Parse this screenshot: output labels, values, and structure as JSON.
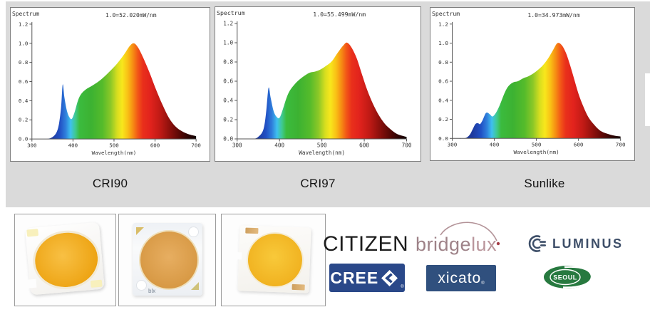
{
  "page": {
    "background": "#ffffff",
    "band_color": "#dadada",
    "spectrum_gradient": [
      [
        0.0,
        "#1c2b82"
      ],
      [
        0.12,
        "#1e3a9e"
      ],
      [
        0.17,
        "#2150c4"
      ],
      [
        0.205,
        "#2f7edb"
      ],
      [
        0.235,
        "#3fc0ef"
      ],
      [
        0.265,
        "#3fc98f"
      ],
      [
        0.29,
        "#3bbb3e"
      ],
      [
        0.36,
        "#3cb232"
      ],
      [
        0.43,
        "#55bb2b"
      ],
      [
        0.48,
        "#8cc827"
      ],
      [
        0.52,
        "#d8de1f"
      ],
      [
        0.55,
        "#f8e71c"
      ],
      [
        0.585,
        "#f9bf15"
      ],
      [
        0.615,
        "#f68d13"
      ],
      [
        0.645,
        "#f25617"
      ],
      [
        0.675,
        "#e9301b"
      ],
      [
        0.72,
        "#e2231d"
      ],
      [
        0.78,
        "#c01a15"
      ],
      [
        0.84,
        "#8c100c"
      ],
      [
        0.9,
        "#580805"
      ],
      [
        0.95,
        "#2d0302"
      ],
      [
        1.0,
        "#120101"
      ]
    ]
  },
  "chart_data": [
    {
      "type": "area",
      "caption": "CRI90",
      "corner_label": "Spectrum",
      "scale_label": "1.0=52.020mW/nm",
      "xlabel": "Wavelength(nm)",
      "xlim": [
        300,
        700
      ],
      "ylim": [
        0,
        1.2
      ],
      "x_ticks": [
        300,
        400,
        500,
        600,
        700
      ],
      "y_ticks": [
        "0.0",
        "0.2",
        "0.4",
        "0.6",
        "0.8",
        "1.0",
        "1.2"
      ],
      "series": [
        {
          "name": "CRI90 spectrum",
          "points": [
            [
              300,
              0
            ],
            [
              334,
              0
            ],
            [
              350,
              0.02
            ],
            [
              360,
              0.07
            ],
            [
              366,
              0.16
            ],
            [
              371,
              0.33
            ],
            [
              375,
              0.57
            ],
            [
              379,
              0.44
            ],
            [
              385,
              0.3
            ],
            [
              391,
              0.23
            ],
            [
              397,
              0.21
            ],
            [
              404,
              0.28
            ],
            [
              412,
              0.4
            ],
            [
              420,
              0.47
            ],
            [
              432,
              0.52
            ],
            [
              448,
              0.56
            ],
            [
              468,
              0.62
            ],
            [
              488,
              0.7
            ],
            [
              508,
              0.79
            ],
            [
              524,
              0.88
            ],
            [
              538,
              0.97
            ],
            [
              548,
              1.0
            ],
            [
              558,
              0.96
            ],
            [
              570,
              0.86
            ],
            [
              586,
              0.7
            ],
            [
              602,
              0.52
            ],
            [
              618,
              0.36
            ],
            [
              634,
              0.22
            ],
            [
              650,
              0.13
            ],
            [
              666,
              0.08
            ],
            [
              682,
              0.05
            ],
            [
              700,
              0.03
            ]
          ]
        }
      ]
    },
    {
      "type": "area",
      "caption": "CRI97",
      "corner_label": "Spectrum",
      "scale_label": "1.0=55.499mW/nm",
      "xlabel": "Wavelength(nm)",
      "xlim": [
        300,
        700
      ],
      "ylim": [
        0,
        1.2
      ],
      "x_ticks": [
        300,
        400,
        500,
        600,
        700
      ],
      "y_ticks": [
        "0.0",
        "0.2",
        "0.4",
        "0.6",
        "0.8",
        "1.0",
        "1.2"
      ],
      "series": [
        {
          "name": "CRI97 spectrum",
          "points": [
            [
              300,
              0
            ],
            [
              338,
              0
            ],
            [
              352,
              0.03
            ],
            [
              362,
              0.1
            ],
            [
              368,
              0.26
            ],
            [
              374,
              0.53
            ],
            [
              379,
              0.43
            ],
            [
              386,
              0.29
            ],
            [
              393,
              0.23
            ],
            [
              400,
              0.22
            ],
            [
              408,
              0.31
            ],
            [
              416,
              0.42
            ],
            [
              424,
              0.5
            ],
            [
              436,
              0.57
            ],
            [
              448,
              0.62
            ],
            [
              460,
              0.66
            ],
            [
              472,
              0.69
            ],
            [
              484,
              0.7
            ],
            [
              496,
              0.72
            ],
            [
              510,
              0.76
            ],
            [
              524,
              0.81
            ],
            [
              538,
              0.9
            ],
            [
              552,
              0.98
            ],
            [
              560,
              1.0
            ],
            [
              570,
              0.95
            ],
            [
              582,
              0.84
            ],
            [
              594,
              0.68
            ],
            [
              606,
              0.52
            ],
            [
              620,
              0.37
            ],
            [
              634,
              0.25
            ],
            [
              648,
              0.16
            ],
            [
              662,
              0.1
            ],
            [
              678,
              0.05
            ],
            [
              700,
              0.02
            ]
          ]
        }
      ]
    },
    {
      "type": "area",
      "caption": "Sunlike",
      "corner_label": "Spectrum",
      "scale_label": "1.0=34.973mW/nm",
      "xlabel": "Wavelength(nm)",
      "xlim": [
        300,
        700
      ],
      "ylim": [
        0,
        1.2
      ],
      "x_ticks": [
        300,
        400,
        500,
        600,
        700
      ],
      "y_ticks": [
        "0.0",
        "0.2",
        "0.4",
        "0.6",
        "0.8",
        "1.0",
        "1.2"
      ],
      "series": [
        {
          "name": "Sunlike spectrum",
          "points": [
            [
              300,
              0
            ],
            [
              328,
              0
            ],
            [
              340,
              0.03
            ],
            [
              348,
              0.09
            ],
            [
              355,
              0.15
            ],
            [
              361,
              0.16
            ],
            [
              366,
              0.15
            ],
            [
              372,
              0.19
            ],
            [
              379,
              0.26
            ],
            [
              384,
              0.27
            ],
            [
              390,
              0.25
            ],
            [
              396,
              0.23
            ],
            [
              404,
              0.27
            ],
            [
              412,
              0.34
            ],
            [
              420,
              0.43
            ],
            [
              428,
              0.51
            ],
            [
              436,
              0.56
            ],
            [
              446,
              0.59
            ],
            [
              456,
              0.6
            ],
            [
              468,
              0.63
            ],
            [
              480,
              0.65
            ],
            [
              492,
              0.68
            ],
            [
              504,
              0.72
            ],
            [
              516,
              0.77
            ],
            [
              528,
              0.84
            ],
            [
              540,
              0.93
            ],
            [
              550,
              1.0
            ],
            [
              560,
              0.98
            ],
            [
              570,
              0.9
            ],
            [
              580,
              0.77
            ],
            [
              590,
              0.62
            ],
            [
              600,
              0.47
            ],
            [
              612,
              0.33
            ],
            [
              624,
              0.22
            ],
            [
              638,
              0.14
            ],
            [
              652,
              0.08
            ],
            [
              668,
              0.05
            ],
            [
              684,
              0.03
            ],
            [
              700,
              0.02
            ]
          ]
        }
      ]
    }
  ],
  "photos": [
    {
      "name": "cob-led-module-tilted",
      "marking": ""
    },
    {
      "name": "cob-led-module-bridgelux",
      "marking": "blx"
    },
    {
      "name": "cob-led-module-notched",
      "marking": ""
    }
  ],
  "brands": {
    "citizen": "CITIZEN",
    "bridgelux_a": "bridge",
    "bridgelux_b": "lux",
    "luminus": "LUMINUS",
    "cree": "CREE",
    "xicato": "xicato",
    "seoul": "SEOUL",
    "reg": "®"
  }
}
